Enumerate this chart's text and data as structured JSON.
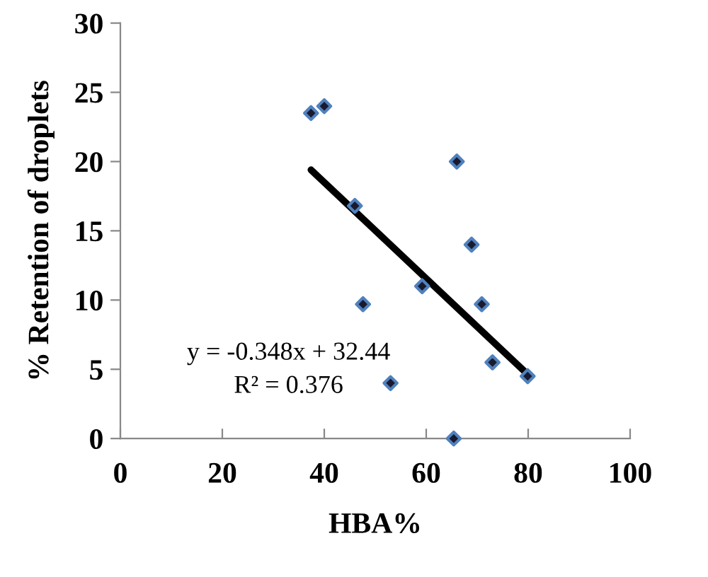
{
  "chart_data": {
    "type": "scatter",
    "xlabel": "HBA%",
    "ylabel": "% Retention of droplets",
    "xlim": [
      0,
      100
    ],
    "ylim": [
      0,
      30
    ],
    "xticks": [
      0,
      20,
      40,
      60,
      80,
      100
    ],
    "yticks": [
      0,
      5,
      10,
      15,
      20,
      25,
      30
    ],
    "grid": false,
    "legend": false,
    "marker": "diamond",
    "annotations": [
      "y = -0.348x + 32.44",
      "R² = 0.376"
    ],
    "series": [
      {
        "color": "#4f81bd",
        "x": [
          37.4,
          40.0,
          46.0,
          47.6,
          53.0,
          59.2,
          66.0,
          65.4,
          68.9,
          70.9,
          73.0,
          79.9
        ],
        "values": [
          23.5,
          24.0,
          16.8,
          9.7,
          4.0,
          11.0,
          20.0,
          0,
          14.0,
          9.7,
          5.5,
          4.5
        ]
      },
      {
        "type": "line",
        "color": "#000000",
        "line_style": "solid",
        "marker": "none",
        "x": [
          37.4,
          80.0
        ],
        "values": [
          19.4,
          4.6
        ]
      }
    ]
  }
}
